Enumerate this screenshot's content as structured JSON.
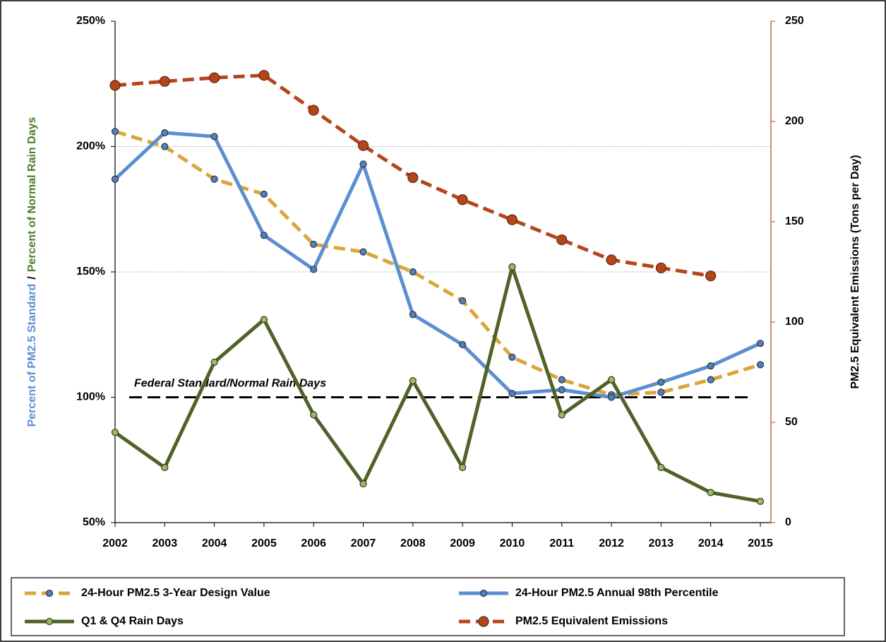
{
  "chart_data": {
    "type": "line",
    "ylabel": [
      "Percent of PM2.5 Standard",
      "/",
      "Percent of Normal Rain Days"
    ],
    "ylabel_colors": [
      "#5b8fd0",
      "#000000",
      "#4f7a28"
    ],
    "y2label": "PM2.5 Equivalent Emissions (Tons per Day)",
    "y2label_color": "#b5451b",
    "categories": [
      "2002",
      "2003",
      "2004",
      "2005",
      "2006",
      "2007",
      "2008",
      "2009",
      "2010",
      "2011",
      "2012",
      "2013",
      "2014",
      "2015"
    ],
    "ylim": [
      50,
      250
    ],
    "yticks": [
      {
        "value": 50,
        "label": "50%"
      },
      {
        "value": 100,
        "label": "100%"
      },
      {
        "value": 150,
        "label": "150%"
      },
      {
        "value": 200,
        "label": "200%"
      },
      {
        "value": 250,
        "label": "250%"
      }
    ],
    "y2lim": [
      0,
      250
    ],
    "y2ticks": [
      0,
      50,
      100,
      150,
      200,
      250
    ],
    "grid": true,
    "reference_line": {
      "value": 100,
      "label": "Federal Standard/Normal Rain Days"
    },
    "series": [
      {
        "name": "24-Hour PM2.5 3-Year Design Value",
        "color": "#dba53a",
        "dashed": true,
        "marker_color": "#4f81bd",
        "values": [
          206,
          200,
          187,
          181,
          161,
          158,
          150,
          138.5,
          116,
          107,
          101,
          102,
          107,
          113
        ]
      },
      {
        "name": "24-Hour PM2.5 Annual 98th Percentile",
        "color": "#5b8fd0",
        "dashed": false,
        "marker_color": "#4f81bd",
        "values": [
          187,
          205.5,
          204,
          164.6,
          151,
          193,
          133,
          121,
          101.5,
          103,
          100,
          106,
          112.5,
          121.5
        ]
      },
      {
        "name": "Q1 & Q4 Rain Days",
        "color": "#4f6228",
        "dashed": false,
        "marker_color": "#9bbb59",
        "values": [
          86,
          72,
          114,
          131,
          93,
          65.5,
          106.6,
          72,
          152,
          93,
          107,
          72,
          62,
          58.5
        ]
      },
      {
        "name": "PM2.5 Equivalent Emissions",
        "color": "#b5451b",
        "dashed": true,
        "marker_color": "#b5451b",
        "axis": "y2",
        "values": [
          218,
          220,
          221.8,
          223,
          205.6,
          188,
          172,
          161,
          151,
          141,
          131,
          127,
          123,
          null
        ]
      }
    ]
  }
}
